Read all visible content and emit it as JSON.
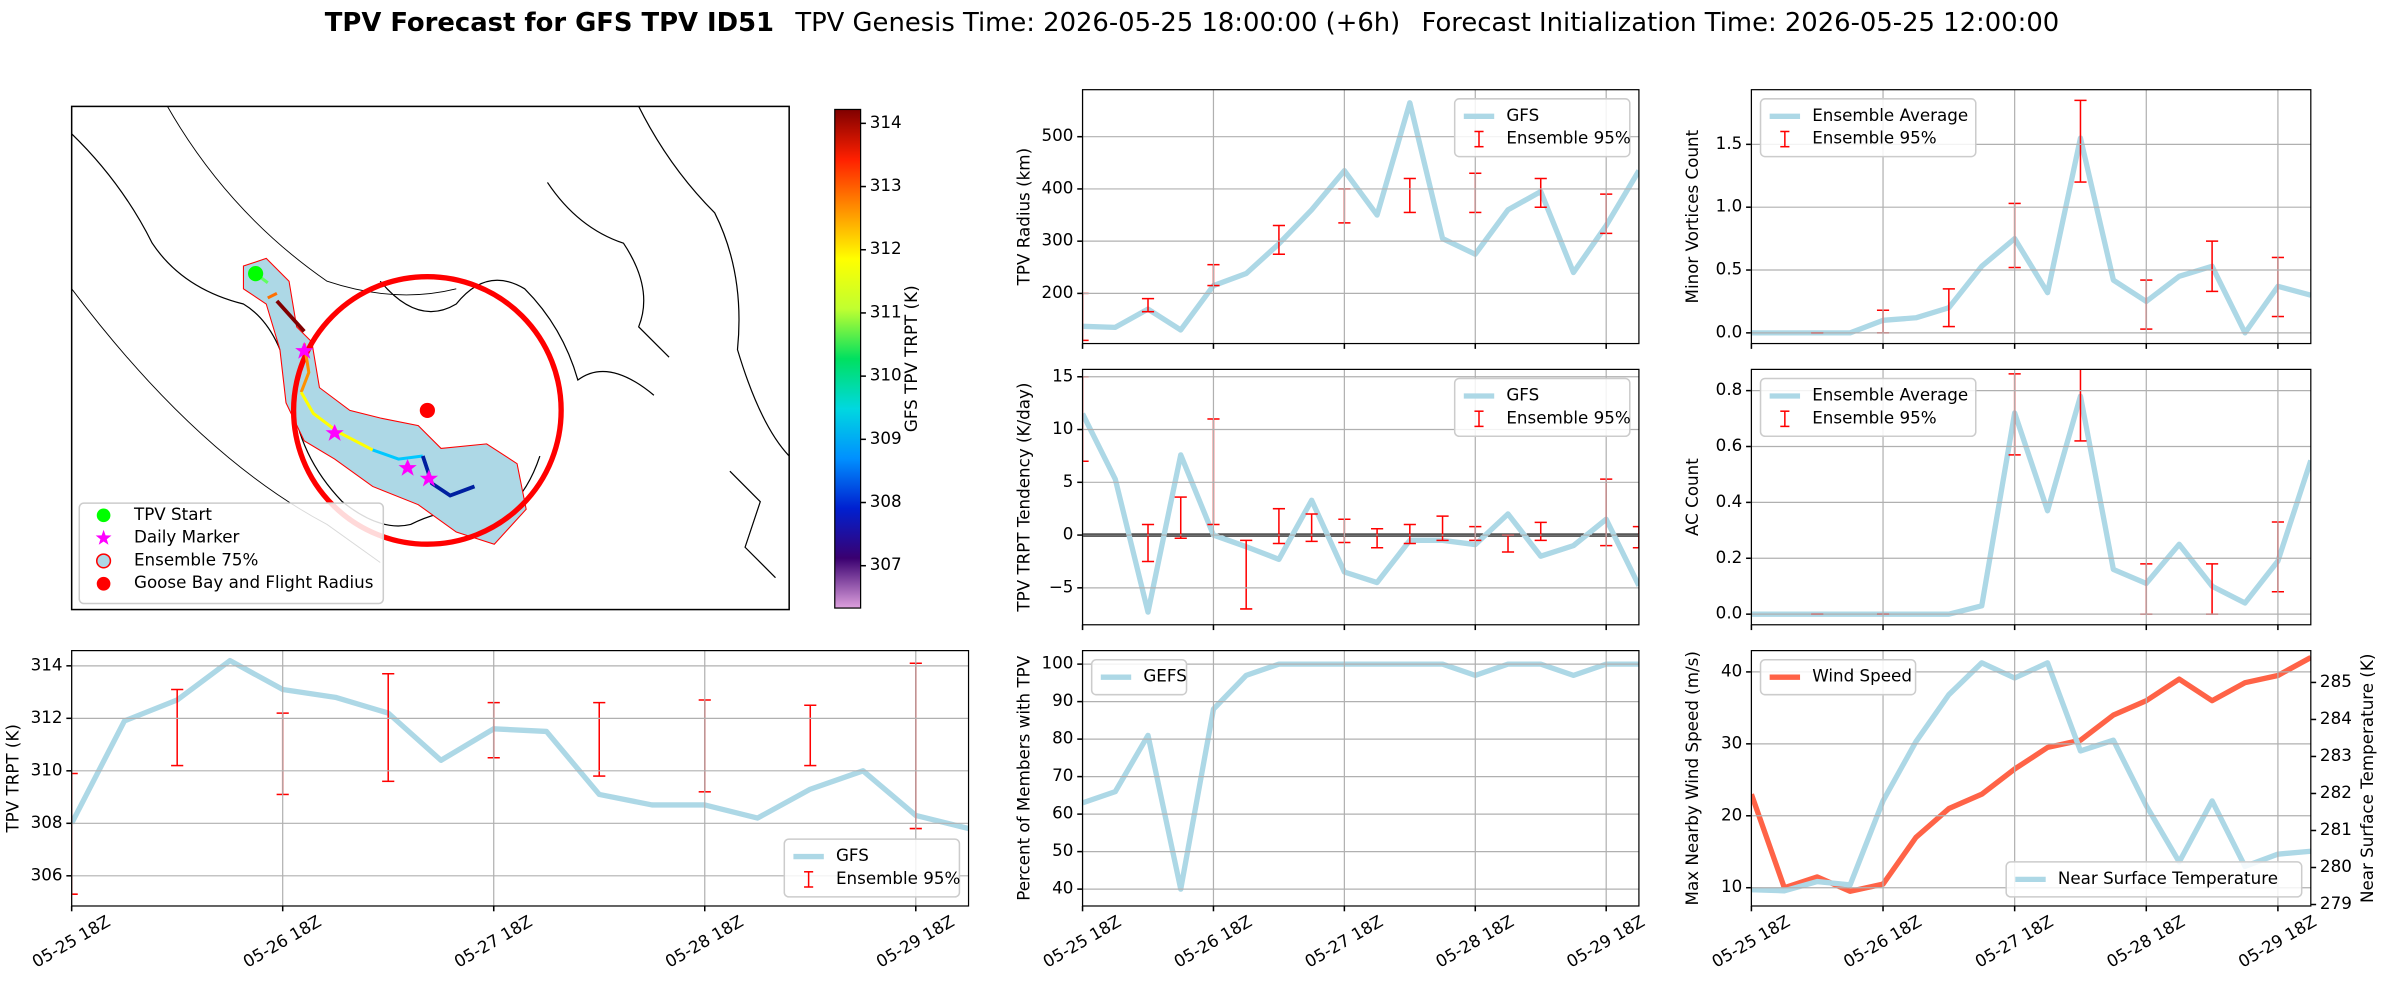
{
  "figure_title": {
    "main": "TPV Forecast for GFS TPV ID51",
    "genesis": "TPV Genesis Time: 2026-05-25 18:00:00 (+6h)",
    "init": "Forecast Initialization Time: 2026-05-25 12:00:00"
  },
  "chart_data": [
    {
      "type": "map",
      "legend": [
        {
          "name": "TPV Start",
          "color": "#00ff00",
          "marker": "circle"
        },
        {
          "name": "Daily Marker",
          "color": "#ff00ff",
          "marker": "star"
        },
        {
          "name": "Ensemble 75%",
          "color": "#add8e6",
          "marker": "circle-edge"
        },
        {
          "name": "Goose Bay and Flight Radius",
          "color": "#ff0000",
          "marker": "circle"
        }
      ],
      "colorbar": {
        "label": "GFS TPV TRPT (K)",
        "lim": [
          306.33,
          314.22
        ],
        "ticks": [
          307,
          308,
          309,
          310,
          311,
          312,
          313,
          314
        ],
        "colormap": [
          "#dda0dd",
          "#3a0070",
          "#0020d0",
          "#0090ff",
          "#00d8e0",
          "#00e060",
          "#c0ff30",
          "#ffff00",
          "#ff9000",
          "#ff2000",
          "#800000"
        ]
      }
    },
    {
      "type": "line",
      "ylabel": "TPV TRPT (K)",
      "legend": "lower right",
      "grid": true,
      "x": [
        "05-25 18Z",
        "05-26 00Z",
        "05-26 06Z",
        "05-26 12Z",
        "05-26 18Z",
        "05-27 00Z",
        "05-27 06Z",
        "05-27 12Z",
        "05-27 18Z",
        "05-28 00Z",
        "05-28 06Z",
        "05-28 12Z",
        "05-28 18Z",
        "05-29 00Z",
        "05-29 06Z",
        "05-29 12Z",
        "05-29 18Z",
        "05-30 00Z"
      ],
      "xlim": [
        "05-25 18Z",
        "05-30 00Z"
      ],
      "xticks": [
        "05-25 18Z",
        "05-26 18Z",
        "05-27 18Z",
        "05-28 18Z",
        "05-29 18Z"
      ],
      "ylim": [
        304.85,
        314.58
      ],
      "yticks": [
        306,
        308,
        310,
        312,
        314
      ],
      "series": [
        {
          "name": "GFS",
          "color": "#add8e6",
          "values": [
            308,
            311.9,
            312.7,
            314.2,
            313.1,
            312.8,
            312.2,
            310.4,
            311.6,
            311.5,
            309.1,
            308.7,
            308.7,
            308.2,
            309.3,
            310.0,
            308.3,
            307.8
          ]
        },
        {
          "name": "Ensemble 95%",
          "color": "#ff0000",
          "kind": "errorbar",
          "low": [
            305.3,
            null,
            310.2,
            null,
            309.1,
            null,
            309.6,
            null,
            310.5,
            null,
            309.8,
            null,
            309.2,
            null,
            310.2,
            null,
            307.8,
            null
          ],
          "high": [
            309.9,
            null,
            313.1,
            null,
            312.2,
            null,
            313.7,
            null,
            312.6,
            null,
            312.6,
            null,
            312.7,
            null,
            312.5,
            null,
            314.1,
            null
          ]
        }
      ]
    },
    {
      "type": "line",
      "ylabel": "TPV Radius (km)",
      "legend": "upper right",
      "grid": true,
      "x": [
        "05-25 18Z",
        "05-26 00Z",
        "05-26 06Z",
        "05-26 12Z",
        "05-26 18Z",
        "05-27 00Z",
        "05-27 06Z",
        "05-27 12Z",
        "05-27 18Z",
        "05-28 00Z",
        "05-28 06Z",
        "05-28 12Z",
        "05-28 18Z",
        "05-29 00Z",
        "05-29 06Z",
        "05-29 12Z",
        "05-29 18Z",
        "05-30 00Z"
      ],
      "xlim": [
        "05-25 18Z",
        "05-30 00Z"
      ],
      "xticks": [
        "05-25 18Z",
        "05-26 18Z",
        "05-27 18Z",
        "05-28 18Z",
        "05-29 18Z"
      ],
      "xticklabels": false,
      "ylim": [
        104,
        590
      ],
      "yticks": [
        200,
        300,
        400,
        500
      ],
      "series": [
        {
          "name": "GFS",
          "color": "#add8e6",
          "values": [
            137,
            135,
            170,
            130,
            215,
            238,
            295,
            360,
            435,
            350,
            565,
            305,
            275,
            360,
            395,
            240,
            330,
            435
          ]
        },
        {
          "name": "Ensemble 95%",
          "color": "#ff0000",
          "kind": "errorbar",
          "low": [
            110,
            null,
            165,
            null,
            215,
            null,
            275,
            null,
            335,
            null,
            355,
            null,
            355,
            null,
            365,
            null,
            315,
            null
          ],
          "high": [
            200,
            null,
            190,
            null,
            255,
            null,
            330,
            null,
            400,
            null,
            420,
            null,
            430,
            null,
            420,
            null,
            390,
            null
          ]
        }
      ]
    },
    {
      "type": "line",
      "ylabel": "TPV TRPT Tendency (K/day)",
      "legend": "upper right",
      "grid": true,
      "zero_line": true,
      "x": [
        "05-25 18Z",
        "05-26 00Z",
        "05-26 06Z",
        "05-26 12Z",
        "05-26 18Z",
        "05-27 00Z",
        "05-27 06Z",
        "05-27 12Z",
        "05-27 18Z",
        "05-28 00Z",
        "05-28 06Z",
        "05-28 12Z",
        "05-28 18Z",
        "05-29 00Z",
        "05-29 06Z",
        "05-29 12Z",
        "05-29 18Z",
        "05-30 00Z"
      ],
      "xlim": [
        "05-25 18Z",
        "05-30 00Z"
      ],
      "xticks": [
        "05-25 18Z",
        "05-26 18Z",
        "05-27 18Z",
        "05-28 18Z",
        "05-29 18Z"
      ],
      "xticklabels": false,
      "ylim": [
        -8.5,
        15.7
      ],
      "yticks": [
        {
          "value": -5,
          "label": "−5"
        },
        0,
        5,
        10,
        15
      ],
      "series": [
        {
          "name": "GFS",
          "color": "#add8e6",
          "values": [
            11.5,
            5.3,
            -7.3,
            7.6,
            0,
            -1.1,
            -2.3,
            3.3,
            -3.5,
            -4.5,
            -0.5,
            -0.5,
            -0.9,
            2,
            -2,
            -1,
            1.5,
            -4.8
          ]
        },
        {
          "name": "Ensemble 95%",
          "color": "#ff0000",
          "kind": "errorbar",
          "low": [
            7,
            null,
            -2.5,
            -0.3,
            1,
            -7,
            -0.8,
            -0.6,
            -0.7,
            -1.2,
            -0.8,
            -0.5,
            -0.5,
            -1.6,
            -0.5,
            null,
            -1,
            -1.2
          ],
          "high": [
            15,
            null,
            1,
            3.6,
            11,
            -0.5,
            2.5,
            2,
            1.5,
            0.6,
            1,
            1.8,
            0.8,
            0,
            1.2,
            null,
            5.3,
            0.8
          ]
        }
      ]
    },
    {
      "type": "line",
      "ylabel": "Percent of Members with TPV",
      "legend": "upper left",
      "grid": true,
      "x": [
        "05-25 18Z",
        "05-26 00Z",
        "05-26 06Z",
        "05-26 12Z",
        "05-26 18Z",
        "05-27 00Z",
        "05-27 06Z",
        "05-27 12Z",
        "05-27 18Z",
        "05-28 00Z",
        "05-28 06Z",
        "05-28 12Z",
        "05-28 18Z",
        "05-29 00Z",
        "05-29 06Z",
        "05-29 12Z",
        "05-29 18Z",
        "05-30 00Z"
      ],
      "xlim": [
        "05-25 18Z",
        "05-30 00Z"
      ],
      "xticks": [
        "05-25 18Z",
        "05-26 18Z",
        "05-27 18Z",
        "05-28 18Z",
        "05-29 18Z"
      ],
      "ylim": [
        35.5,
        103.6
      ],
      "yticks": [
        40,
        50,
        60,
        70,
        80,
        90,
        100
      ],
      "series": [
        {
          "name": "GEFS",
          "color": "#add8e6",
          "values": [
            63,
            66,
            81,
            40,
            88,
            97,
            100,
            100,
            100,
            100,
            100,
            100,
            97,
            100,
            100,
            97,
            100,
            100
          ]
        }
      ]
    },
    {
      "type": "line",
      "ylabel": "Minor Vortices Count",
      "legend": "upper left",
      "grid": true,
      "x": [
        "05-25 18Z",
        "05-26 00Z",
        "05-26 06Z",
        "05-26 12Z",
        "05-26 18Z",
        "05-27 00Z",
        "05-27 06Z",
        "05-27 12Z",
        "05-27 18Z",
        "05-28 00Z",
        "05-28 06Z",
        "05-28 12Z",
        "05-28 18Z",
        "05-29 00Z",
        "05-29 06Z",
        "05-29 12Z",
        "05-29 18Z",
        "05-30 00Z"
      ],
      "xlim": [
        "05-25 18Z",
        "05-30 00Z"
      ],
      "xticks": [
        "05-25 18Z",
        "05-26 18Z",
        "05-27 18Z",
        "05-28 18Z",
        "05-29 18Z"
      ],
      "xticklabels": false,
      "ylim": [
        -0.085,
        1.935
      ],
      "yticks": [
        {
          "value": 0,
          "label": "0.0"
        },
        0.5,
        {
          "value": 1,
          "label": "1.0"
        },
        1.5
      ],
      "series": [
        {
          "name": "Ensemble Average",
          "color": "#add8e6",
          "values": [
            0,
            0,
            0,
            0,
            0.1,
            0.12,
            0.2,
            0.53,
            0.75,
            0.32,
            1.55,
            0.42,
            0.25,
            0.45,
            0.53,
            0,
            0.37,
            0.3
          ]
        },
        {
          "name": "Ensemble 95%",
          "color": "#ff0000",
          "kind": "errorbar",
          "low": [
            null,
            null,
            0,
            null,
            0,
            null,
            0.05,
            null,
            0.52,
            null,
            1.2,
            null,
            0.03,
            null,
            0.33,
            null,
            0.13,
            null
          ],
          "high": [
            null,
            null,
            0,
            null,
            0.18,
            null,
            0.35,
            null,
            1.03,
            null,
            1.85,
            null,
            0.42,
            null,
            0.73,
            null,
            0.6,
            null
          ]
        }
      ]
    },
    {
      "type": "line",
      "ylabel": "AC Count",
      "legend": "upper left",
      "grid": true,
      "x": [
        "05-25 18Z",
        "05-26 00Z",
        "05-26 06Z",
        "05-26 12Z",
        "05-26 18Z",
        "05-27 00Z",
        "05-27 06Z",
        "05-27 12Z",
        "05-27 18Z",
        "05-28 00Z",
        "05-28 06Z",
        "05-28 12Z",
        "05-28 18Z",
        "05-29 00Z",
        "05-29 06Z",
        "05-29 12Z",
        "05-29 18Z",
        "05-30 00Z"
      ],
      "xlim": [
        "05-25 18Z",
        "05-30 00Z"
      ],
      "xticks": [
        "05-25 18Z",
        "05-26 18Z",
        "05-27 18Z",
        "05-28 18Z",
        "05-29 18Z"
      ],
      "xticklabels": false,
      "ylim": [
        -0.038,
        0.876
      ],
      "yticks": [
        {
          "value": 0,
          "label": "0.0"
        },
        0.2,
        0.4,
        0.6,
        0.8
      ],
      "series": [
        {
          "name": "Ensemble Average",
          "color": "#add8e6",
          "values": [
            0,
            0,
            0,
            0,
            0,
            0,
            0,
            0.03,
            0.72,
            0.37,
            0.78,
            0.16,
            0.11,
            0.25,
            0.1,
            0.04,
            0.19,
            0.55
          ]
        },
        {
          "name": "Ensemble 95%",
          "color": "#ff0000",
          "kind": "errorbar",
          "low": [
            null,
            null,
            0,
            null,
            0,
            null,
            null,
            null,
            0.57,
            null,
            0.62,
            null,
            0,
            null,
            0,
            null,
            0.08,
            null
          ],
          "high": [
            null,
            null,
            0,
            null,
            0,
            null,
            null,
            null,
            0.86,
            null,
            0.93,
            null,
            0.18,
            null,
            0.18,
            null,
            0.33,
            null
          ]
        }
      ]
    },
    {
      "type": "line",
      "ylabel": "Max Nearby Wind Speed (m/s)",
      "ylabel_color": "#ff6347",
      "y2label": "Near Surface Temperature (K)",
      "y2label_color": "#4169e1",
      "grid": true,
      "x": [
        "05-25 18Z",
        "05-26 00Z",
        "05-26 06Z",
        "05-26 12Z",
        "05-26 18Z",
        "05-27 00Z",
        "05-27 06Z",
        "05-27 12Z",
        "05-27 18Z",
        "05-28 00Z",
        "05-28 06Z",
        "05-28 12Z",
        "05-28 18Z",
        "05-29 00Z",
        "05-29 06Z",
        "05-29 12Z",
        "05-29 18Z",
        "05-30 00Z"
      ],
      "xlim": [
        "05-25 18Z",
        "05-30 00Z"
      ],
      "xticks": [
        "05-25 18Z",
        "05-26 18Z",
        "05-27 18Z",
        "05-28 18Z",
        "05-29 18Z"
      ],
      "ylim": [
        7.46,
        42.96
      ],
      "yticks": [
        10,
        20,
        30,
        40
      ],
      "y2lim": [
        278.96,
        285.86
      ],
      "y2ticks": [
        279,
        280,
        281,
        282,
        283,
        284,
        285
      ],
      "series": [
        {
          "name": "Wind Speed",
          "color": "#ff6347",
          "legend": "upper left",
          "values": [
            23,
            10,
            11.5,
            9.5,
            10.5,
            17,
            21,
            23,
            26.5,
            29.5,
            30.5,
            34,
            36,
            39,
            36,
            38.5,
            39.5,
            42
          ]
        },
        {
          "name": "Near Surface Temperature",
          "color": "#add8e6",
          "axis": "y2",
          "legend": "lower right",
          "values": [
            279.4,
            279.37,
            279.62,
            279.53,
            281.8,
            283.4,
            284.67,
            285.53,
            285.12,
            285.53,
            283.15,
            283.44,
            281.67,
            280.15,
            281.8,
            280.03,
            280.36,
            280.44
          ]
        }
      ]
    }
  ]
}
